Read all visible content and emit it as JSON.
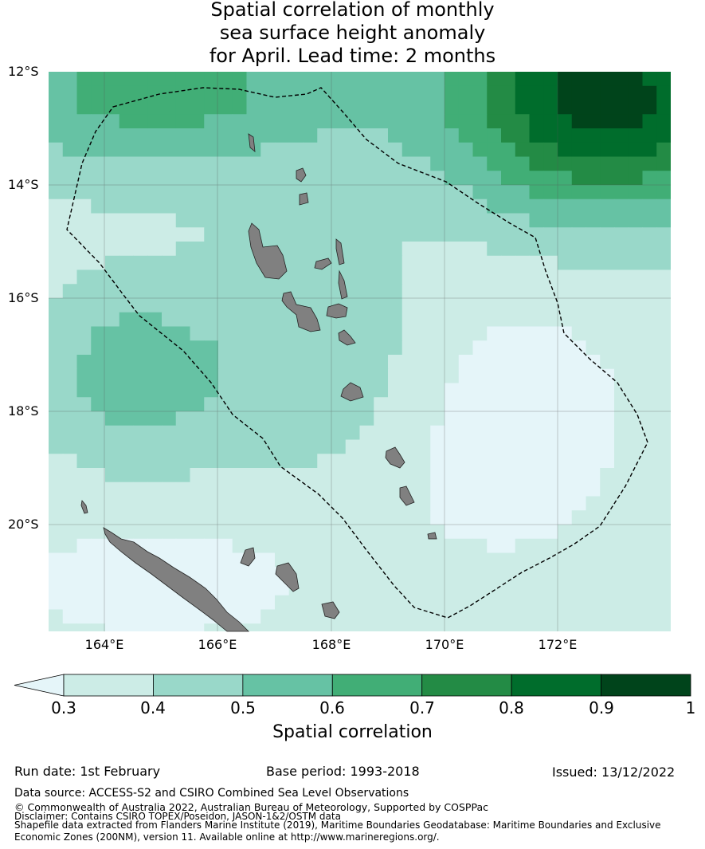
{
  "title": {
    "line1": "Spatial correlation of monthly",
    "line2": "sea surface height anomaly",
    "line3": " for April. Lead time: 2 months"
  },
  "axes": {
    "lat_labels": [
      "12°S",
      "14°S",
      "16°S",
      "18°S",
      "20°S"
    ],
    "lon_labels": [
      "164°E",
      "166°E",
      "168°E",
      "170°E",
      "172°E"
    ]
  },
  "colorbar": {
    "label": "Spatial correlation",
    "ticks": [
      "0.3",
      "0.4",
      "0.5",
      "0.6",
      "0.7",
      "0.8",
      "0.9",
      "1"
    ],
    "colors": [
      "#e5f5f9",
      "#ccece6",
      "#99d8c9",
      "#66c2a4",
      "#41ae76",
      "#238b45",
      "#006d2c",
      "#00441b"
    ]
  },
  "footer": {
    "run_date": "Run date: 1st February",
    "base_period": "Base period: 1993-2018",
    "issued": "Issued: 13/12/2022",
    "data_source": "Data source: ACCESS-S2 and CSIRO Combined Sea Level Observations",
    "copyright": "© Commonwealth of Australia 2022, Australian Bureau of Meteorology, Supported by COSPPac",
    "disclaimer": "Disclaimer: Contains CSIRO TOPEX/Poseidon, JASON-1&2/OSTM data",
    "shapefile": "Shapefile data extracted from Flanders Marine Institute (2019), Maritime Boundaries Geodatabase: Maritime Boundaries and Exclusive",
    "shapefile2": "Economic Zones (200NM), version 11. Available online at http://www.marineregions.org/."
  },
  "map_style": {
    "land_color": "#808080",
    "eez_line": "dashed black",
    "gridlines": true
  }
}
